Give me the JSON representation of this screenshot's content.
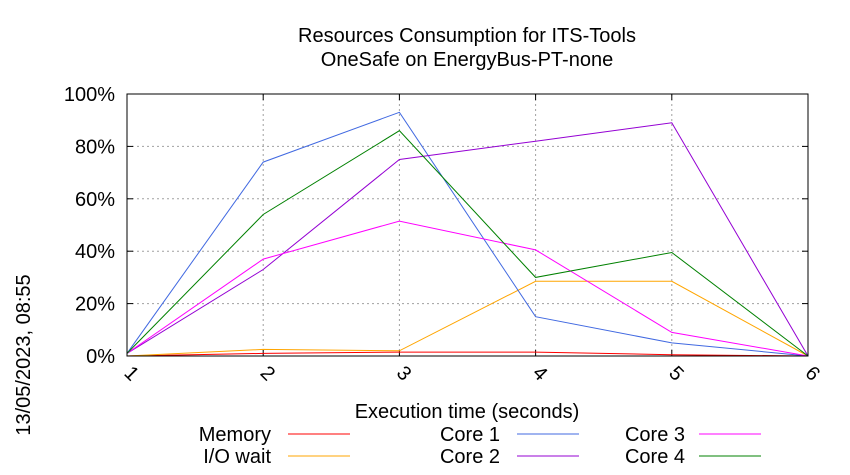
{
  "chart_data": {
    "type": "line",
    "title": "Resources Consumption for ITS-Tools",
    "subtitle": "OneSafe on EnergyBus-PT-none",
    "xlabel": "Execution time (seconds)",
    "ylabel": "",
    "x": [
      1,
      2,
      3,
      4,
      5,
      6
    ],
    "xticks": [
      "1",
      "2",
      "3",
      "4",
      "5",
      "6"
    ],
    "xlim": [
      1,
      6
    ],
    "yticks": [
      "0%",
      "20%",
      "40%",
      "60%",
      "80%",
      "100%"
    ],
    "ylim": [
      0,
      100
    ],
    "grid": true,
    "legend_position": "bottom",
    "series": [
      {
        "name": "Memory",
        "color": "#ff0000",
        "values": [
          0,
          1,
          1.5,
          1.5,
          0.5,
          0
        ]
      },
      {
        "name": "I/O wait",
        "color": "#ffa500",
        "values": [
          0,
          2.5,
          2,
          28.5,
          28.5,
          0
        ]
      },
      {
        "name": "Core 1",
        "color": "#4169e1",
        "values": [
          1,
          74,
          93,
          15,
          5,
          0
        ]
      },
      {
        "name": "Core 2",
        "color": "#9400d3",
        "values": [
          1,
          33,
          75,
          82,
          89,
          0
        ]
      },
      {
        "name": "Core 3",
        "color": "#ff00ff",
        "values": [
          1,
          37,
          51.5,
          40.5,
          9,
          0
        ]
      },
      {
        "name": "Core 4",
        "color": "#008000",
        "values": [
          1,
          54,
          86,
          30,
          39.5,
          0
        ]
      }
    ]
  },
  "timestamp": "13/05/2023, 08:55"
}
